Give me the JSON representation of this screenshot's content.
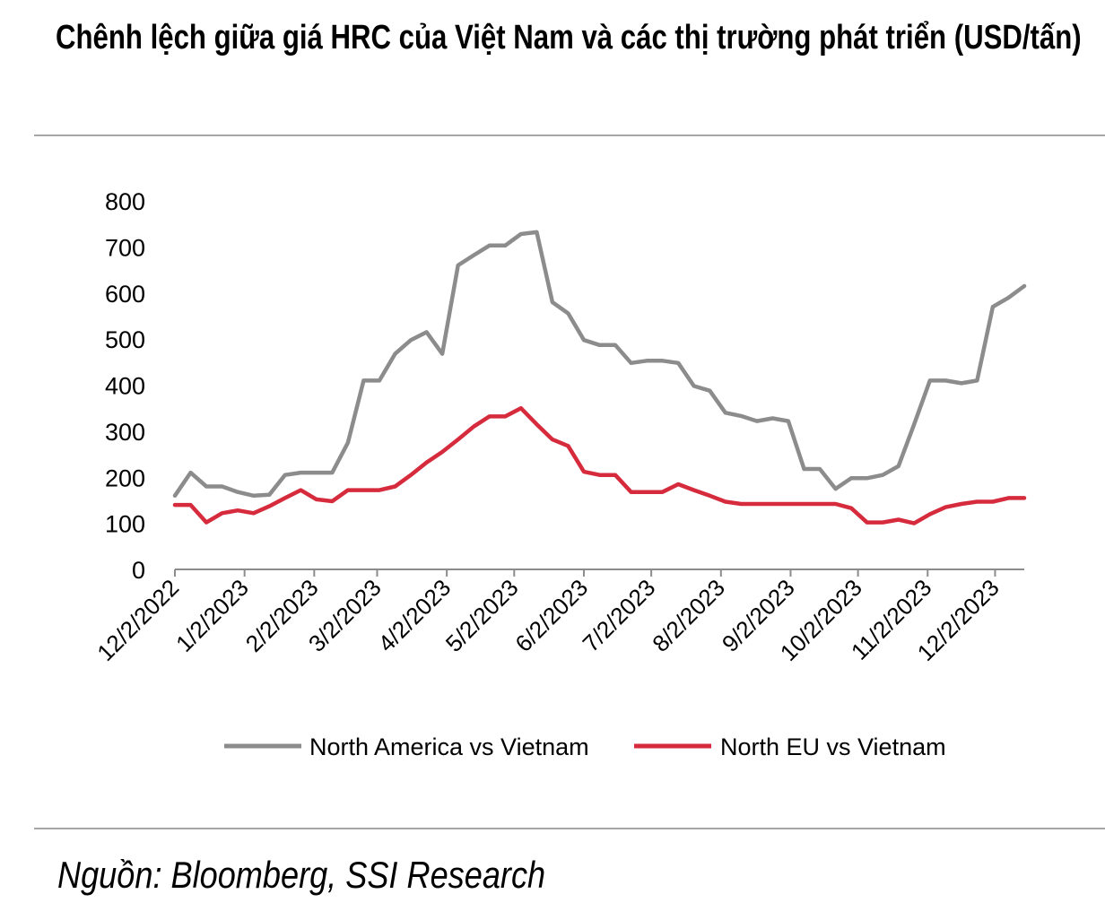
{
  "title": "Chênh lệch giữa giá HRC của Việt Nam và các thị trường phát triển (USD/tấn)",
  "source": "Nguồn: Bloomberg, SSI Research",
  "chart_data": {
    "type": "line",
    "title": "Chênh lệch giữa giá HRC của Việt Nam và các thị trường phát triển (USD/tấn)",
    "xlabel": "",
    "ylabel": "",
    "ylim": [
      0,
      800
    ],
    "yticks": [
      0,
      100,
      200,
      300,
      400,
      500,
      600,
      700,
      800
    ],
    "xticks": [
      "12/2/2022",
      "1/2/2023",
      "2/2/2023",
      "3/2/2023",
      "4/2/2023",
      "5/2/2023",
      "6/2/2023",
      "7/2/2023",
      "8/2/2023",
      "9/2/2023",
      "10/2/2023",
      "11/2/2023",
      "12/2/2023"
    ],
    "grid": false,
    "legend_position": "bottom",
    "colors": {
      "North America vs Vietnam": "#8c8c8c",
      "North EU vs Vietnam": "#d62b3c"
    },
    "x": [
      "2022-12-02",
      "2022-12-09",
      "2022-12-16",
      "2022-12-23",
      "2022-12-30",
      "2023-01-06",
      "2023-01-13",
      "2023-01-20",
      "2023-01-27",
      "2023-02-03",
      "2023-02-10",
      "2023-02-17",
      "2023-02-24",
      "2023-03-03",
      "2023-03-10",
      "2023-03-17",
      "2023-03-24",
      "2023-03-31",
      "2023-04-07",
      "2023-04-14",
      "2023-04-21",
      "2023-04-28",
      "2023-05-05",
      "2023-05-12",
      "2023-05-19",
      "2023-05-26",
      "2023-06-02",
      "2023-06-09",
      "2023-06-16",
      "2023-06-23",
      "2023-06-30",
      "2023-07-07",
      "2023-07-14",
      "2023-07-21",
      "2023-07-28",
      "2023-08-04",
      "2023-08-11",
      "2023-08-18",
      "2023-08-25",
      "2023-09-01",
      "2023-09-08",
      "2023-09-15",
      "2023-09-22",
      "2023-09-29",
      "2023-10-06",
      "2023-10-13",
      "2023-10-20",
      "2023-10-27",
      "2023-11-03",
      "2023-11-10",
      "2023-11-17",
      "2023-11-24",
      "2023-12-01",
      "2023-12-08",
      "2023-12-15"
    ],
    "series": [
      {
        "name": "North America vs Vietnam",
        "values": [
          160,
          210,
          180,
          180,
          168,
          160,
          162,
          205,
          210,
          210,
          210,
          275,
          410,
          410,
          468,
          498,
          515,
          468,
          660,
          682,
          703,
          703,
          728,
          732,
          580,
          556,
          498,
          487,
          487,
          448,
          453,
          453,
          448,
          398,
          388,
          340,
          333,
          322,
          328,
          322,
          218,
          218,
          175,
          198,
          198,
          205,
          224,
          315,
          410,
          410,
          404,
          410,
          570,
          590,
          615
        ]
      },
      {
        "name": "North EU vs Vietnam",
        "values": [
          140,
          140,
          102,
          122,
          128,
          122,
          137,
          155,
          172,
          152,
          148,
          172,
          172,
          172,
          180,
          205,
          232,
          255,
          282,
          310,
          332,
          332,
          350,
          315,
          282,
          268,
          212,
          205,
          205,
          168,
          168,
          168,
          185,
          172,
          160,
          147,
          142,
          142,
          142,
          142,
          142,
          142,
          142,
          133,
          102,
          102,
          108,
          100,
          120,
          135,
          142,
          147,
          147,
          155,
          155
        ]
      }
    ]
  }
}
